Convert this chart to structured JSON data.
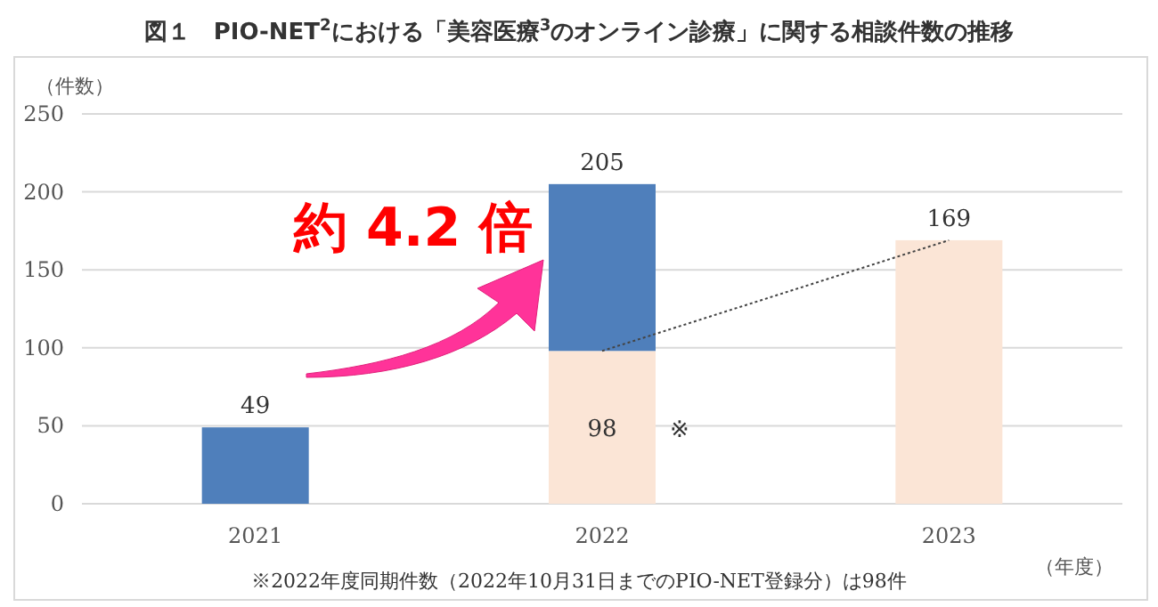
{
  "chart_data": {
    "type": "bar",
    "title": "図１　PIO-NET$^{2}$における「美容医療$^{3}$のオンライン診療」に関する相談件数の推移",
    "ylabel": "（件数）",
    "xlabel": "（年度）",
    "categories": [
      "2021",
      "2022",
      "2023"
    ],
    "stacked": true,
    "series": [
      {
        "color": "#fbe5d6",
        "values": [
          null,
          98,
          169
        ],
        "value_labels": [
          null,
          "98",
          "169"
        ]
      },
      {
        "color": "#4f7fbb",
        "values": [
          49,
          107,
          null
        ],
        "value_labels": [
          "49",
          null,
          null
        ]
      },
      {
        "type": "line",
        "values": [
          null,
          98,
          169
        ],
        "color": "#444444",
        "line_style": "dotted"
      }
    ],
    "totals": [
      null,
      "205",
      null
    ],
    "ylim": [
      0,
      250
    ],
    "yticks": [
      0,
      50,
      100,
      150,
      200,
      250
    ],
    "grid": "y",
    "annotations": [
      "※2022年度同期件数（2022年10月31日までのPIO-NET登録分）は98件",
      "約 4.2 倍",
      "※"
    ]
  }
}
